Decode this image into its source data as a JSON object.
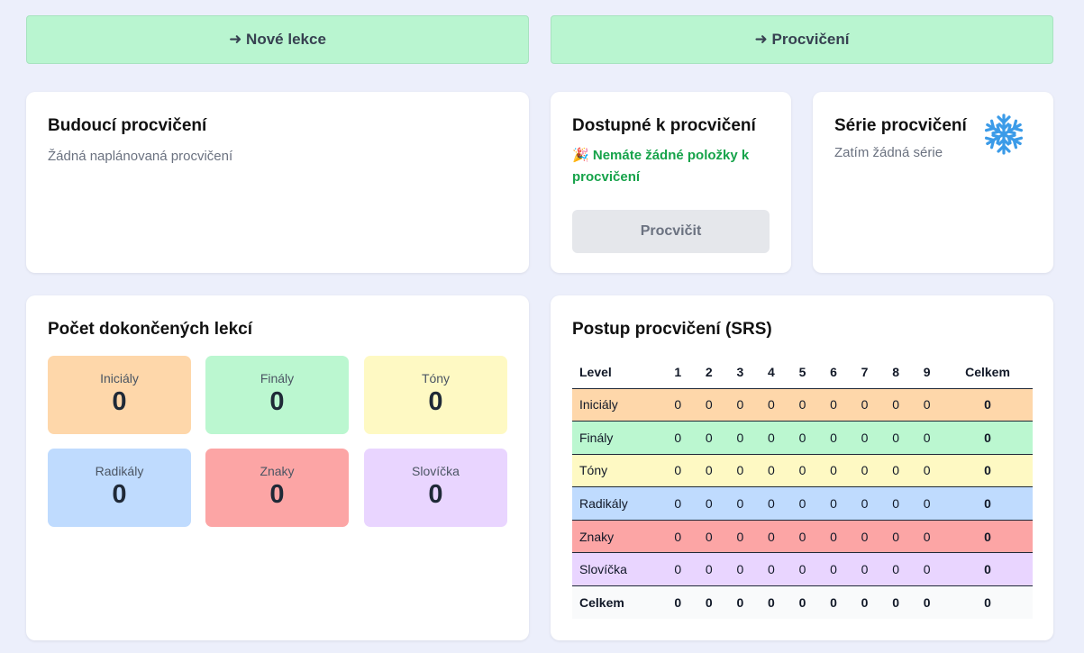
{
  "nav": {
    "new_lessons": "➜ Nové lekce",
    "practice": "➜ Procvičení"
  },
  "upcoming": {
    "title": "Budoucí procvičení",
    "empty": "Žádná naplánovaná procvičení"
  },
  "available": {
    "title": "Dostupné k procvičení",
    "emoji": "🎉",
    "message": "Nemáte žádné položky k procvičení",
    "button": "Procvičit"
  },
  "streak": {
    "title": "Série procvičení",
    "empty": "Zatím žádná série",
    "icon": "snowflake-icon",
    "icon_color": "#3b9be8"
  },
  "completed": {
    "title": "Počet dokončených lekcí",
    "tiles": [
      {
        "label": "Iniciály",
        "value": "0",
        "color": "#fed7aa"
      },
      {
        "label": "Finály",
        "value": "0",
        "color": "#bbf7d0"
      },
      {
        "label": "Tóny",
        "value": "0",
        "color": "#fef9c3"
      },
      {
        "label": "Radikály",
        "value": "0",
        "color": "#bfdbfe"
      },
      {
        "label": "Znaky",
        "value": "0",
        "color": "#fca5a5"
      },
      {
        "label": "Slovíčka",
        "value": "0",
        "color": "#e9d5ff"
      }
    ]
  },
  "srs": {
    "title": "Postup procvičení (SRS)",
    "headers": [
      "Level",
      "1",
      "2",
      "3",
      "4",
      "5",
      "6",
      "7",
      "8",
      "9",
      "Celkem"
    ],
    "rows": [
      {
        "label": "Iniciály",
        "values": [
          "0",
          "0",
          "0",
          "0",
          "0",
          "0",
          "0",
          "0",
          "0"
        ],
        "total": "0",
        "color": "#fed7aa"
      },
      {
        "label": "Finály",
        "values": [
          "0",
          "0",
          "0",
          "0",
          "0",
          "0",
          "0",
          "0",
          "0"
        ],
        "total": "0",
        "color": "#bbf7d0"
      },
      {
        "label": "Tóny",
        "values": [
          "0",
          "0",
          "0",
          "0",
          "0",
          "0",
          "0",
          "0",
          "0"
        ],
        "total": "0",
        "color": "#fef9c3"
      },
      {
        "label": "Radikály",
        "values": [
          "0",
          "0",
          "0",
          "0",
          "0",
          "0",
          "0",
          "0",
          "0"
        ],
        "total": "0",
        "color": "#bfdbfe"
      },
      {
        "label": "Znaky",
        "values": [
          "0",
          "0",
          "0",
          "0",
          "0",
          "0",
          "0",
          "0",
          "0"
        ],
        "total": "0",
        "color": "#fca5a5"
      },
      {
        "label": "Slovíčka",
        "values": [
          "0",
          "0",
          "0",
          "0",
          "0",
          "0",
          "0",
          "0",
          "0"
        ],
        "total": "0",
        "color": "#e9d5ff"
      }
    ],
    "total_row": {
      "label": "Celkem",
      "values": [
        "0",
        "0",
        "0",
        "0",
        "0",
        "0",
        "0",
        "0",
        "0"
      ],
      "total": "0"
    }
  }
}
